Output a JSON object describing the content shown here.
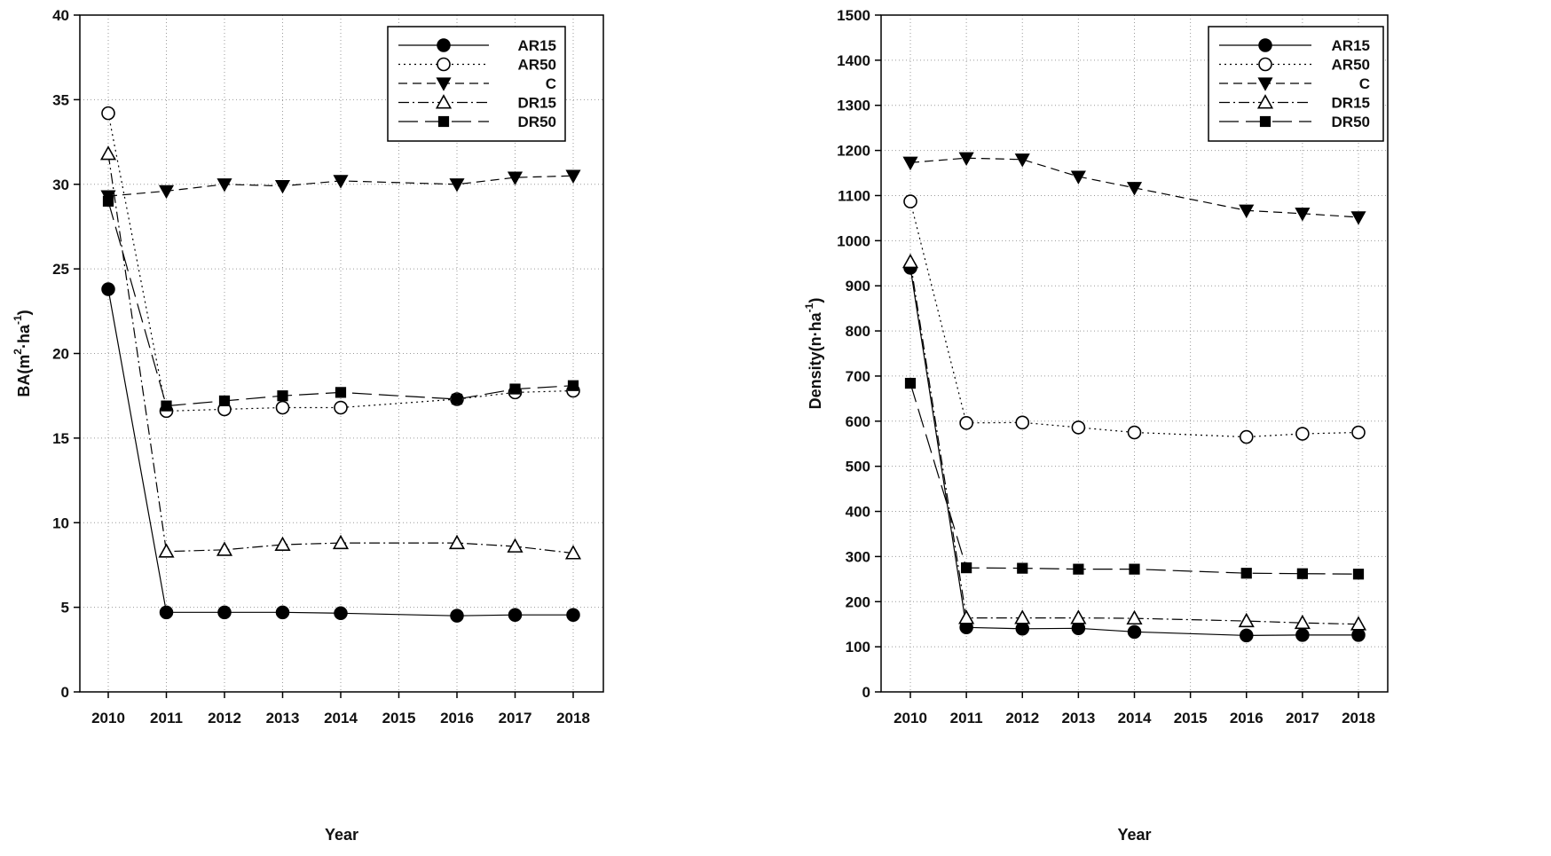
{
  "colors": {
    "ink": "#000000",
    "grid": "#9a9a9a",
    "background": "#ffffff"
  },
  "chart_data": [
    {
      "type": "line",
      "xlabel": "Year",
      "ylabel_base": "BA(m",
      "ylabel_sup1": "2",
      "ylabel_mid": "·ha",
      "ylabel_sup2": "-1",
      "ylabel_end": ")",
      "ylim": [
        0,
        40
      ],
      "yticks": [
        0,
        5,
        10,
        15,
        20,
        25,
        30,
        35,
        40
      ],
      "categories": [
        "2010",
        "2011",
        "2012",
        "2013",
        "2014",
        "2015",
        "2016",
        "2017",
        "2018"
      ],
      "grid": true,
      "legend_position": "top-right",
      "series": [
        {
          "name": "AR15",
          "marker": "filled-circle",
          "dash": "solid",
          "values": [
            23.8,
            4.7,
            4.7,
            4.7,
            4.65,
            null,
            4.5,
            4.55,
            4.55
          ]
        },
        {
          "name": "AR50",
          "marker": "open-circle",
          "dash": "dotted",
          "values": [
            34.2,
            16.6,
            16.7,
            16.8,
            16.8,
            null,
            17.3,
            17.7,
            17.8
          ]
        },
        {
          "name": "C",
          "marker": "filled-triangle-down",
          "dash": "dashed",
          "values": [
            29.3,
            29.6,
            30.0,
            29.9,
            30.2,
            null,
            30.0,
            30.4,
            30.5
          ]
        },
        {
          "name": "DR15",
          "marker": "open-triangle-up",
          "dash": "dashdot",
          "values": [
            31.8,
            8.3,
            8.4,
            8.7,
            8.8,
            null,
            8.8,
            8.6,
            8.2
          ]
        },
        {
          "name": "DR50",
          "marker": "filled-square",
          "dash": "longdash",
          "values": [
            29.0,
            16.9,
            17.2,
            17.5,
            17.7,
            null,
            17.3,
            17.9,
            18.1
          ]
        }
      ]
    },
    {
      "type": "line",
      "xlabel": "Year",
      "ylabel_base": "Density(n·ha",
      "ylabel_sup1": "",
      "ylabel_mid": "",
      "ylabel_sup2": "-1",
      "ylabel_end": ")",
      "ylim": [
        0,
        1500
      ],
      "yticks": [
        0,
        100,
        200,
        300,
        400,
        500,
        600,
        700,
        800,
        900,
        1000,
        1100,
        1200,
        1300,
        1400,
        1500
      ],
      "categories": [
        "2010",
        "2011",
        "2012",
        "2013",
        "2014",
        "2015",
        "2016",
        "2017",
        "2018"
      ],
      "grid": true,
      "legend_position": "top-right",
      "series": [
        {
          "name": "AR15",
          "marker": "filled-circle",
          "dash": "solid",
          "values": [
            940,
            143,
            140,
            141,
            133,
            null,
            125,
            126,
            126
          ]
        },
        {
          "name": "AR50",
          "marker": "open-circle",
          "dash": "dotted",
          "values": [
            1087,
            596,
            597,
            586,
            575,
            null,
            565,
            572,
            575
          ]
        },
        {
          "name": "C",
          "marker": "filled-triangle-down",
          "dash": "dashed",
          "values": [
            1173,
            1183,
            1180,
            1142,
            1117,
            null,
            1067,
            1060,
            1052
          ]
        },
        {
          "name": "DR15",
          "marker": "open-triangle-up",
          "dash": "dashdot",
          "values": [
            953,
            164,
            164,
            164,
            163,
            null,
            157,
            153,
            150
          ]
        },
        {
          "name": "DR50",
          "marker": "filled-square",
          "dash": "longdash",
          "values": [
            684,
            275,
            274,
            272,
            272,
            null,
            263,
            262,
            261
          ]
        }
      ]
    }
  ]
}
